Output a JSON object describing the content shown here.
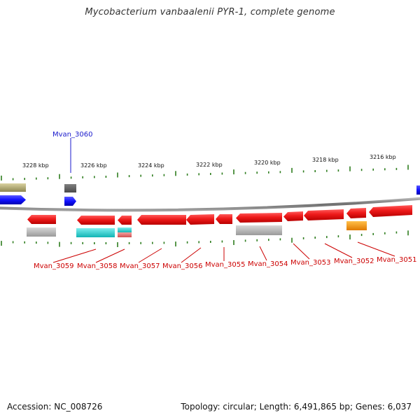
{
  "title": "Mycobacterium vanbaalenii PYR-1, complete genome",
  "footer": {
    "accession": "Accession: NC_008726",
    "topology": "Topology: circular; Length: 6,491,865 bp; Genes: 6,037"
  },
  "colors": {
    "backbone": "#8a8a8a",
    "tick": "#2e7d1e",
    "forward_gene": "#e02020",
    "reverse_gene": "#1a1aff",
    "label_forward": "#cc0000",
    "label_reverse": "#1a1acc"
  },
  "scale_labels": [
    "3228 kbp",
    "3226 kbp",
    "3224 kbp",
    "3222 kbp",
    "3220 kbp",
    "3218 kbp",
    "3216 kbp"
  ],
  "gene_labels_lower": [
    "Mvan_3059",
    "Mvan_3058",
    "Mvan_3057",
    "Mvan_3056",
    "Mvan_3055",
    "Mvan_3054",
    "Mvan_3053",
    "Mvan_3052",
    "Mvan_3051"
  ],
  "gene_label_upper": "Mvan_3060"
}
